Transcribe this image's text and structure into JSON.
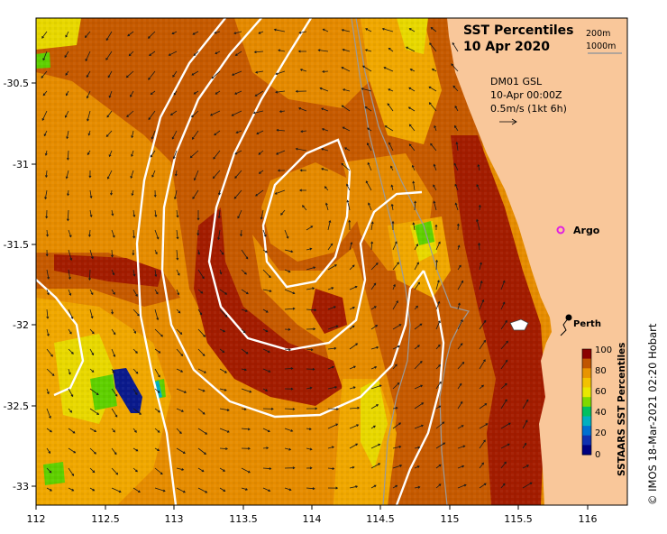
{
  "map": {
    "title_line1": "SST Percentiles",
    "title_line2": "10 Apr 2020",
    "depth_labels": [
      "200m",
      "1000m"
    ],
    "current_info": [
      "DM01 GSL",
      "10-Apr 00:00Z",
      "0.5m/s (1kt 6h)"
    ],
    "places": {
      "argo_label": "Argo",
      "perth_label": "Perth"
    },
    "x_ticks": [
      "112",
      "112.5",
      "113",
      "113.5",
      "114",
      "114.5",
      "115",
      "115.5",
      "116"
    ],
    "y_ticks": [
      "-30.5",
      "-31",
      "-31.5",
      "-32",
      "-32.5",
      "-33"
    ],
    "colorbar": {
      "title": "SSTAARS SST Percentiles",
      "ticks": [
        "100",
        "80",
        "60",
        "40",
        "20",
        "0"
      ],
      "colors": [
        "#8b0000",
        "#c05400",
        "#e89400",
        "#f2c200",
        "#e8e800",
        "#7fd900",
        "#00c060",
        "#00b0c0",
        "#0070d0",
        "#1030b0",
        "#000080"
      ]
    },
    "credit": "© IMOS 18-Mar-2021 02:20 Hobart",
    "palette": {
      "land": "#f9c79a",
      "very_warm": "#a31c00",
      "warm": "#c65a00",
      "mid": "#e58a00",
      "cool": "#f0a800",
      "yellow": "#e8d800",
      "green": "#5fd000",
      "blue_dark": "#0a1a8c",
      "argo": "#e020e0"
    }
  }
}
